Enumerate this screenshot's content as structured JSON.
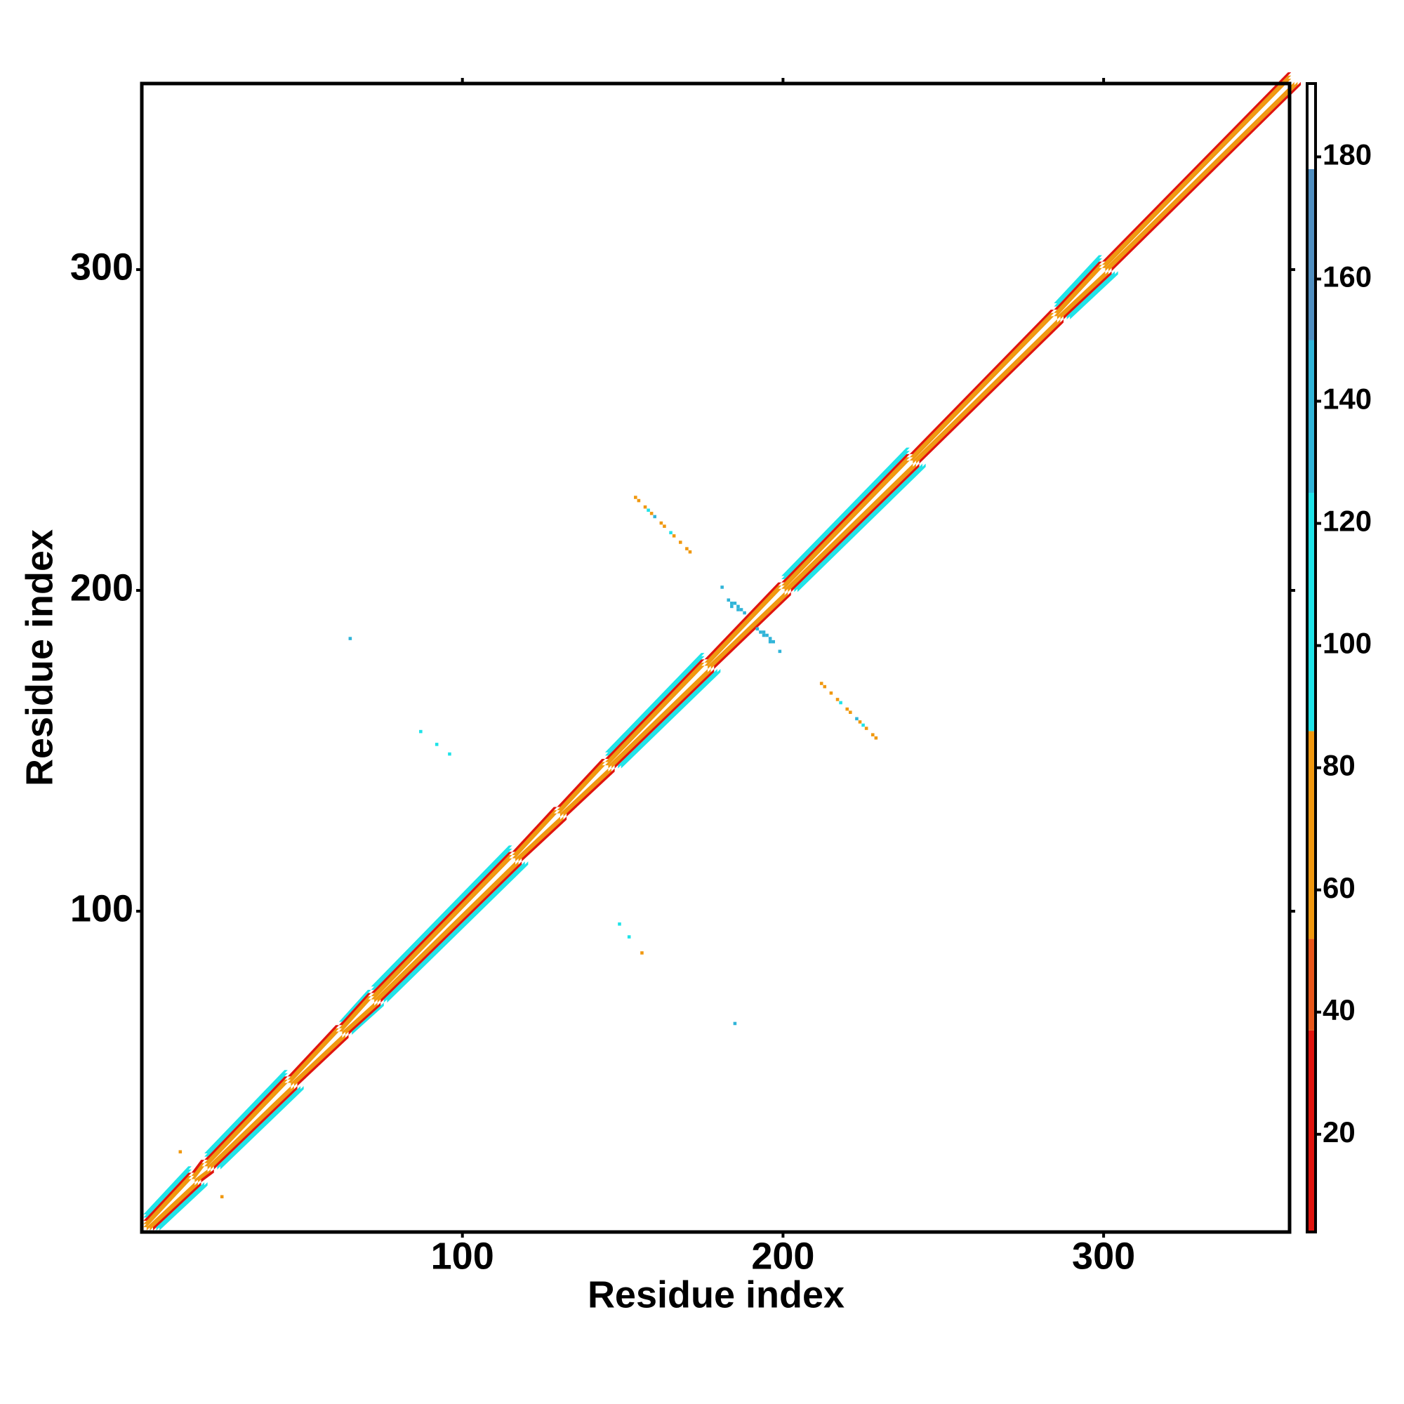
{
  "chart_data": {
    "type": "contact_map",
    "xlabel": "Residue index",
    "ylabel": "Residue index",
    "xlim": [
      0,
      358
    ],
    "ylim": [
      0,
      358
    ],
    "xticks": [
      100,
      200,
      300
    ],
    "yticks": [
      100,
      200,
      300
    ],
    "colorbar": {
      "zlim": [
        4,
        192
      ],
      "zticks": [
        20,
        40,
        60,
        80,
        100,
        120,
        140,
        160,
        180
      ],
      "breaks": [
        4,
        37,
        52,
        86,
        125,
        150,
        178,
        192
      ],
      "colors": [
        "#e0140e",
        "#e8561a",
        "#f0980f",
        "#1fe3e8",
        "#30b4d8",
        "#4f8ec0",
        "#ffffff"
      ]
    },
    "diagonal": {
      "offsets": [
        1,
        2,
        3,
        4,
        5
      ],
      "values": [
        70,
        60,
        30,
        100,
        110
      ],
      "seg_start": [
        1,
        16,
        20,
        46,
        62,
        72,
        116,
        130,
        145,
        176,
        200,
        240,
        285,
        300
      ],
      "seg_end": [
        15,
        19,
        45,
        61,
        71,
        115,
        129,
        144,
        175,
        199,
        239,
        284,
        299,
        358
      ],
      "seg_width": [
        5,
        3,
        5,
        3,
        4,
        5,
        3,
        3,
        5,
        3,
        5,
        3,
        5,
        3
      ]
    },
    "contacts": {
      "x": [
        154,
        155,
        157,
        158,
        159,
        160,
        162,
        163,
        165,
        166,
        168,
        170,
        171,
        229,
        228,
        226,
        225,
        224,
        223,
        221,
        220,
        218,
        217,
        215,
        213,
        212,
        181,
        183,
        184,
        185,
        186,
        187,
        188,
        192,
        193,
        194,
        195,
        196,
        197,
        199,
        184,
        186,
        194,
        196,
        65,
        185,
        87,
        92,
        96,
        156,
        152,
        149,
        12,
        25
      ],
      "y": [
        229,
        228,
        226,
        225,
        224,
        223,
        221,
        220,
        218,
        217,
        215,
        213,
        212,
        154,
        155,
        157,
        158,
        159,
        160,
        162,
        163,
        165,
        166,
        168,
        170,
        171,
        201,
        197,
        196,
        196,
        195,
        194,
        193,
        188,
        187,
        186,
        186,
        185,
        184,
        181,
        195,
        194,
        187,
        184,
        185,
        65,
        156,
        152,
        149,
        87,
        92,
        96,
        25,
        11
      ],
      "values": [
        70,
        60,
        75,
        100,
        70,
        130,
        75,
        60,
        100,
        75,
        70,
        60,
        75,
        70,
        60,
        75,
        100,
        70,
        130,
        75,
        60,
        100,
        75,
        70,
        60,
        75,
        125,
        130,
        130,
        130,
        130,
        130,
        130,
        130,
        130,
        130,
        130,
        130,
        130,
        125,
        130,
        130,
        130,
        130,
        130,
        130,
        100,
        100,
        100,
        75,
        100,
        100,
        70,
        70
      ]
    }
  }
}
